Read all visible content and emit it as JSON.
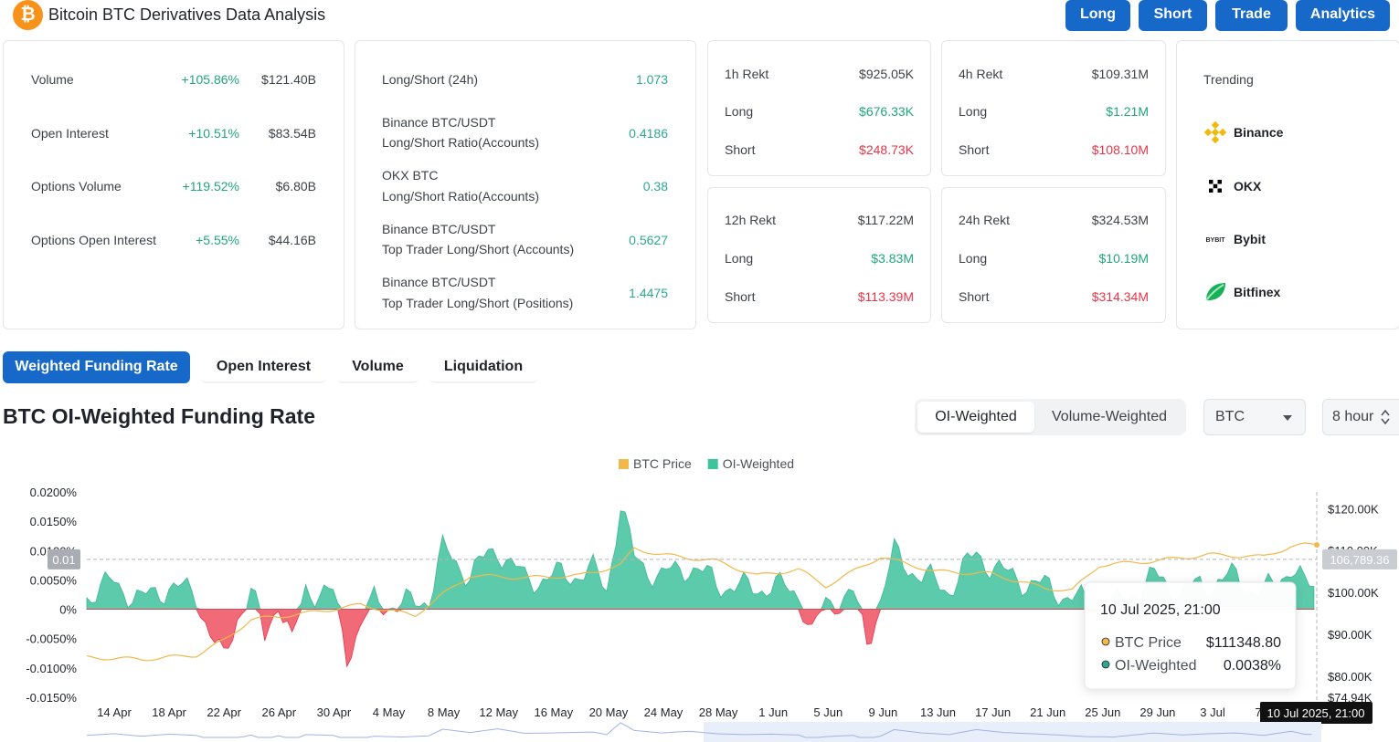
{
  "header": {
    "logo_glyph": "₿",
    "title": "Bitcoin BTC Derivatives Data Analysis",
    "nav": [
      "Long",
      "Short",
      "Trade",
      "Analytics"
    ]
  },
  "summary": [
    {
      "label": "Volume",
      "change": "+105.86%",
      "value": "$121.40B"
    },
    {
      "label": "Open Interest",
      "change": "+10.51%",
      "value": "$83.54B"
    },
    {
      "label": "Options Volume",
      "change": "+119.52%",
      "value": "$6.80B"
    },
    {
      "label": "Options Open Interest",
      "change": "+5.55%",
      "value": "$44.16B"
    }
  ],
  "ratios": [
    {
      "line1": "Long/Short (24h)",
      "line2": "",
      "value": "1.073"
    },
    {
      "line1": "Binance BTC/USDT",
      "line2": "Long/Short Ratio(Accounts)",
      "value": "0.4186"
    },
    {
      "line1": "OKX BTC",
      "line2": "Long/Short Ratio(Accounts)",
      "value": "0.38"
    },
    {
      "line1": "Binance BTC/USDT",
      "line2": "Top Trader Long/Short (Accounts)",
      "value": "0.5627"
    },
    {
      "line1": "Binance BTC/USDT",
      "line2": "Top Trader Long/Short (Positions)",
      "value": "1.4475"
    }
  ],
  "rekt": [
    {
      "title": "1h Rekt",
      "total": "$925.05K",
      "long_label": "Long",
      "long": "$676.33K",
      "short_label": "Short",
      "short": "$248.73K"
    },
    {
      "title": "4h Rekt",
      "total": "$109.31M",
      "long_label": "Long",
      "long": "$1.21M",
      "short_label": "Short",
      "short": "$108.10M"
    },
    {
      "title": "12h Rekt",
      "total": "$117.22M",
      "long_label": "Long",
      "long": "$3.83M",
      "short_label": "Short",
      "short": "$113.39M"
    },
    {
      "title": "24h Rekt",
      "total": "$324.53M",
      "long_label": "Long",
      "long": "$10.19M",
      "short_label": "Short",
      "short": "$314.34M"
    }
  ],
  "trending": {
    "title": "Trending",
    "items": [
      {
        "name": "Binance",
        "icon": "binance-icon",
        "color": "#f0b90b"
      },
      {
        "name": "OKX",
        "icon": "okx-icon",
        "color": "#000000"
      },
      {
        "name": "Bybit",
        "icon": "bybit-icon",
        "icon_text": "BYBIT",
        "color": "#1f2329"
      },
      {
        "name": "Bitfinex",
        "icon": "bitfinex-icon",
        "color": "#16b157"
      }
    ]
  },
  "tabs": [
    "Weighted Funding Rate",
    "Open Interest",
    "Volume",
    "Liquidation"
  ],
  "section_title": "BTC OI-Weighted Funding Rate",
  "weighting": [
    "OI-Weighted",
    "Volume-Weighted"
  ],
  "asset_select": "BTC",
  "interval_select": "8 hour",
  "chart_data": {
    "type": "area",
    "legend": [
      {
        "name": "BTC Price",
        "color": "#f0b94a"
      },
      {
        "name": "OI-Weighted",
        "color": "#3cc49c"
      }
    ],
    "legend_position": "top-center",
    "y_left_ticks": [
      "0.0200%",
      "0.0150%",
      "0.0100%",
      "0.0050%",
      "0%",
      "-0.0050%",
      "-0.0100%",
      "-0.0150%"
    ],
    "y_left_range": [
      -0.015,
      0.02
    ],
    "y_right_ticks": [
      "$120.00K",
      "$110.00K",
      "$100.00K",
      "$90.00K",
      "$80.00K",
      "$74.94K"
    ],
    "y_right_range": [
      74940,
      124000
    ],
    "x_labels": [
      "14 Apr",
      "18 Apr",
      "22 Apr",
      "26 Apr",
      "30 Apr",
      "4 May",
      "8 May",
      "12 May",
      "16 May",
      "20 May",
      "24 May",
      "28 May",
      "1 Jun",
      "5 Jun",
      "9 Jun",
      "13 Jun",
      "17 Jun",
      "21 Jun",
      "25 Jun",
      "29 Jun",
      "3 Jul",
      "7 Jul"
    ],
    "x_range": [
      "2025-04-12",
      "2025-07-10"
    ],
    "funding_anchors": [
      [
        "2025-04-12",
        0.0025
      ],
      [
        "2025-04-14",
        0.0045
      ],
      [
        "2025-04-16",
        0.0015
      ],
      [
        "2025-04-18",
        0.004
      ],
      [
        "2025-04-20",
        0.0025
      ],
      [
        "2025-04-21",
        -0.004
      ],
      [
        "2025-04-22",
        -0.009
      ],
      [
        "2025-04-23",
        -0.001
      ],
      [
        "2025-04-24",
        0.003
      ],
      [
        "2025-04-25",
        -0.005
      ],
      [
        "2025-04-26",
        0.002
      ],
      [
        "2025-04-27",
        -0.006
      ],
      [
        "2025-04-28",
        0.0035
      ],
      [
        "2025-04-30",
        0.0025
      ],
      [
        "2025-05-01",
        -0.0075
      ],
      [
        "2025-05-02",
        -0.003
      ],
      [
        "2025-05-03",
        0.0015
      ],
      [
        "2025-05-05",
        0.0005
      ],
      [
        "2025-05-07",
        0.002
      ],
      [
        "2025-05-08",
        0.01
      ],
      [
        "2025-05-10",
        0.006
      ],
      [
        "2025-05-12",
        0.0105
      ],
      [
        "2025-05-14",
        0.005
      ],
      [
        "2025-05-16",
        0.0055
      ],
      [
        "2025-05-19",
        0.0065
      ],
      [
        "2025-05-20",
        0.0035
      ],
      [
        "2025-05-21",
        0.018
      ],
      [
        "2025-05-22",
        0.0085
      ],
      [
        "2025-05-24",
        0.0055
      ],
      [
        "2025-05-26",
        0.0075
      ],
      [
        "2025-05-28",
        0.0045
      ],
      [
        "2025-05-30",
        0.0035
      ],
      [
        "2025-06-01",
        0.004
      ],
      [
        "2025-06-03",
        0.003
      ],
      [
        "2025-06-04",
        -0.0045
      ],
      [
        "2025-06-05",
        0.001
      ],
      [
        "2025-06-07",
        0.0025
      ],
      [
        "2025-06-08",
        -0.0055
      ],
      [
        "2025-06-09",
        0.0015
      ],
      [
        "2025-06-10",
        0.0095
      ],
      [
        "2025-06-12",
        0.0055
      ],
      [
        "2025-06-14",
        0.0035
      ],
      [
        "2025-06-16",
        0.0095
      ],
      [
        "2025-06-18",
        0.006
      ],
      [
        "2025-06-20",
        0.0045
      ],
      [
        "2025-06-22",
        0.003
      ],
      [
        "2025-06-24",
        0.001
      ],
      [
        "2025-06-26",
        0.0005
      ],
      [
        "2025-06-29",
        0.0055
      ],
      [
        "2025-07-01",
        0.003
      ],
      [
        "2025-07-03",
        0.0045
      ],
      [
        "2025-07-05",
        0.0055
      ],
      [
        "2025-07-07",
        0.0025
      ],
      [
        "2025-07-09",
        0.0075
      ],
      [
        "2025-07-10",
        0.0038
      ]
    ],
    "price_anchors": [
      [
        "2025-04-12",
        84500
      ],
      [
        "2025-04-16",
        84000
      ],
      [
        "2025-04-20",
        85000
      ],
      [
        "2025-04-22",
        88500
      ],
      [
        "2025-04-24",
        93500
      ],
      [
        "2025-04-28",
        95000
      ],
      [
        "2025-05-02",
        97000
      ],
      [
        "2025-05-06",
        94500
      ],
      [
        "2025-05-08",
        99500
      ],
      [
        "2025-05-10",
        104000
      ],
      [
        "2025-05-14",
        103500
      ],
      [
        "2025-05-18",
        104000
      ],
      [
        "2025-05-21",
        106500
      ],
      [
        "2025-05-22",
        110500
      ],
      [
        "2025-05-24",
        109000
      ],
      [
        "2025-05-28",
        107500
      ],
      [
        "2025-05-31",
        104000
      ],
      [
        "2025-06-03",
        105500
      ],
      [
        "2025-06-05",
        101500
      ],
      [
        "2025-06-09",
        108500
      ],
      [
        "2025-06-13",
        105000
      ],
      [
        "2025-06-17",
        104500
      ],
      [
        "2025-06-21",
        101000
      ],
      [
        "2025-06-23",
        100500
      ],
      [
        "2025-06-25",
        106500
      ],
      [
        "2025-06-29",
        107500
      ],
      [
        "2025-07-03",
        109000
      ],
      [
        "2025-07-07",
        108500
      ],
      [
        "2025-07-09",
        111000
      ],
      [
        "2025-07-10",
        111348.8
      ]
    ],
    "crosshair": {
      "left_label": "0.01",
      "right_label": "106,789.36",
      "date_label": "10 Jul 2025, 21:00"
    },
    "tooltip": {
      "date": "10 Jul 2025, 21:00",
      "rows": [
        {
          "name": "BTC Price",
          "value": "$111348.80",
          "color": "#f0b94a"
        },
        {
          "name": "OI-Weighted",
          "value": "0.0038%",
          "color": "#2ea88f"
        }
      ]
    },
    "grid": false
  }
}
